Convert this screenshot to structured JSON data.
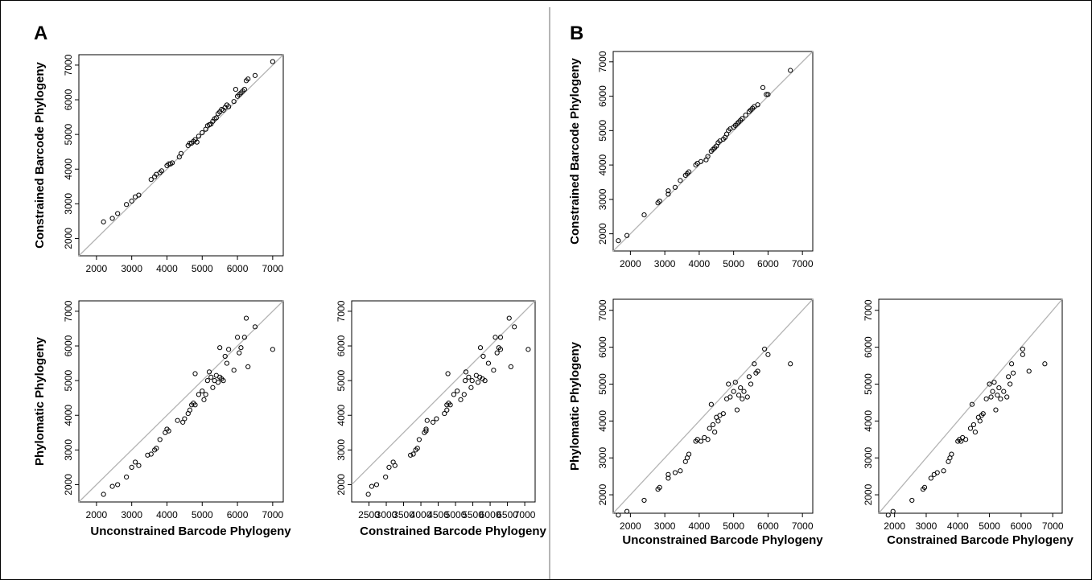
{
  "panel_labels": [
    "A",
    "B"
  ],
  "chart_data": [
    {
      "id": "A1",
      "panel": "A",
      "type": "scatter",
      "xlabel": "",
      "ylabel": "Constrained Barcode Phylogeny",
      "xlim": [
        1500,
        7300
      ],
      "ylim": [
        1500,
        7300
      ],
      "xticks": [
        2000,
        3000,
        4000,
        5000,
        6000,
        7000
      ],
      "yticks": [
        2000,
        3000,
        4000,
        5000,
        6000,
        7000
      ],
      "reference_line": "y = x",
      "grid": false,
      "points": [
        [
          2200,
          2480
        ],
        [
          2450,
          2580
        ],
        [
          2600,
          2720
        ],
        [
          2850,
          2980
        ],
        [
          3000,
          3080
        ],
        [
          3100,
          3200
        ],
        [
          3200,
          3250
        ],
        [
          3550,
          3700
        ],
        [
          3650,
          3780
        ],
        [
          3700,
          3850
        ],
        [
          3800,
          3900
        ],
        [
          3850,
          3950
        ],
        [
          4000,
          4100
        ],
        [
          4050,
          4150
        ],
        [
          4100,
          4150
        ],
        [
          4150,
          4180
        ],
        [
          4350,
          4350
        ],
        [
          4400,
          4450
        ],
        [
          4600,
          4680
        ],
        [
          4650,
          4750
        ],
        [
          4700,
          4750
        ],
        [
          4750,
          4800
        ],
        [
          4800,
          4850
        ],
        [
          4850,
          4780
        ],
        [
          4900,
          4950
        ],
        [
          5000,
          5050
        ],
        [
          5100,
          5150
        ],
        [
          5150,
          5250
        ],
        [
          5200,
          5280
        ],
        [
          5250,
          5300
        ],
        [
          5300,
          5380
        ],
        [
          5350,
          5450
        ],
        [
          5400,
          5480
        ],
        [
          5450,
          5600
        ],
        [
          5500,
          5650
        ],
        [
          5550,
          5720
        ],
        [
          5600,
          5700
        ],
        [
          5650,
          5780
        ],
        [
          5700,
          5850
        ],
        [
          5750,
          5800
        ],
        [
          5900,
          5950
        ],
        [
          5950,
          6300
        ],
        [
          6000,
          6100
        ],
        [
          6050,
          6150
        ],
        [
          6100,
          6200
        ],
        [
          6150,
          6250
        ],
        [
          6200,
          6300
        ],
        [
          6250,
          6550
        ],
        [
          6300,
          6600
        ],
        [
          6500,
          6700
        ],
        [
          7000,
          7100
        ]
      ]
    },
    {
      "id": "A2",
      "panel": "A",
      "type": "scatter",
      "xlabel": "Unconstrained Barcode Phylogeny",
      "ylabel": "Phylomatic Phylogeny",
      "xlim": [
        1500,
        7300
      ],
      "ylim": [
        1500,
        7300
      ],
      "xticks": [
        2000,
        3000,
        4000,
        5000,
        6000,
        7000
      ],
      "yticks": [
        2000,
        3000,
        4000,
        5000,
        6000,
        7000
      ],
      "reference_line": "y = x",
      "grid": false,
      "points": [
        [
          2200,
          1720
        ],
        [
          2450,
          1950
        ],
        [
          2600,
          2000
        ],
        [
          2850,
          2220
        ],
        [
          3000,
          2500
        ],
        [
          3100,
          2650
        ],
        [
          3200,
          2550
        ],
        [
          3450,
          2850
        ],
        [
          3550,
          2880
        ],
        [
          3650,
          3000
        ],
        [
          3700,
          3050
        ],
        [
          3800,
          3300
        ],
        [
          3950,
          3500
        ],
        [
          4000,
          3600
        ],
        [
          4050,
          3550
        ],
        [
          4300,
          3850
        ],
        [
          4450,
          3800
        ],
        [
          4500,
          3900
        ],
        [
          4600,
          4050
        ],
        [
          4650,
          4150
        ],
        [
          4700,
          4300
        ],
        [
          4750,
          4350
        ],
        [
          4800,
          4300
        ],
        [
          4800,
          5200
        ],
        [
          4900,
          4600
        ],
        [
          5000,
          4700
        ],
        [
          5050,
          4450
        ],
        [
          5100,
          4600
        ],
        [
          5150,
          5000
        ],
        [
          5200,
          5250
        ],
        [
          5250,
          5100
        ],
        [
          5300,
          4800
        ],
        [
          5350,
          5000
        ],
        [
          5400,
          5150
        ],
        [
          5450,
          4950
        ],
        [
          5500,
          5950
        ],
        [
          5500,
          5100
        ],
        [
          5550,
          5050
        ],
        [
          5600,
          5000
        ],
        [
          5650,
          5700
        ],
        [
          5700,
          5500
        ],
        [
          5750,
          5900
        ],
        [
          5900,
          5300
        ],
        [
          6000,
          6250
        ],
        [
          6050,
          5800
        ],
        [
          6100,
          5950
        ],
        [
          6200,
          6250
        ],
        [
          6250,
          6800
        ],
        [
          6300,
          5400
        ],
        [
          6500,
          6550
        ],
        [
          7000,
          5900
        ]
      ]
    },
    {
      "id": "A3",
      "panel": "A",
      "type": "scatter",
      "xlabel": "Constrained Barcode Phylogeny",
      "ylabel": "",
      "xlim": [
        2000,
        7300
      ],
      "ylim": [
        1500,
        7300
      ],
      "xticks": [
        2500,
        3000,
        3500,
        4000,
        4500,
        5000,
        5500,
        6000,
        6500,
        7000
      ],
      "yticks": [
        2000,
        3000,
        4000,
        5000,
        6000,
        7000
      ],
      "reference_line": "y = x",
      "grid": false,
      "points": [
        [
          2480,
          1720
        ],
        [
          2580,
          1950
        ],
        [
          2720,
          2000
        ],
        [
          2980,
          2220
        ],
        [
          3080,
          2500
        ],
        [
          3200,
          2650
        ],
        [
          3250,
          2550
        ],
        [
          3700,
          2850
        ],
        [
          3780,
          2880
        ],
        [
          3850,
          3000
        ],
        [
          3900,
          3050
        ],
        [
          3950,
          3300
        ],
        [
          4100,
          3500
        ],
        [
          4150,
          3600
        ],
        [
          4150,
          3550
        ],
        [
          4180,
          3850
        ],
        [
          4350,
          3800
        ],
        [
          4450,
          3900
        ],
        [
          4680,
          4050
        ],
        [
          4750,
          4150
        ],
        [
          4750,
          4300
        ],
        [
          4800,
          4350
        ],
        [
          4850,
          4300
        ],
        [
          4780,
          5200
        ],
        [
          4950,
          4600
        ],
        [
          5050,
          4700
        ],
        [
          5150,
          4450
        ],
        [
          5250,
          4600
        ],
        [
          5280,
          5000
        ],
        [
          5300,
          5250
        ],
        [
          5380,
          5100
        ],
        [
          5450,
          4800
        ],
        [
          5480,
          5000
        ],
        [
          5600,
          5150
        ],
        [
          5650,
          4950
        ],
        [
          5720,
          5950
        ],
        [
          5700,
          5100
        ],
        [
          5780,
          5050
        ],
        [
          5850,
          5000
        ],
        [
          5800,
          5700
        ],
        [
          5950,
          5500
        ],
        [
          6300,
          5900
        ],
        [
          6100,
          5300
        ],
        [
          6150,
          6250
        ],
        [
          6200,
          5800
        ],
        [
          6250,
          5950
        ],
        [
          6300,
          6250
        ],
        [
          6550,
          6800
        ],
        [
          6600,
          5400
        ],
        [
          6700,
          6550
        ],
        [
          7100,
          5900
        ]
      ]
    },
    {
      "id": "B1",
      "panel": "B",
      "type": "scatter",
      "xlabel": "",
      "ylabel": "Constrained Barcode Phylogeny",
      "xlim": [
        1500,
        7300
      ],
      "ylim": [
        1500,
        7300
      ],
      "xticks": [
        2000,
        3000,
        4000,
        5000,
        6000,
        7000
      ],
      "yticks": [
        2000,
        3000,
        4000,
        5000,
        6000,
        7000
      ],
      "reference_line": "y = x",
      "grid": false,
      "points": [
        [
          1650,
          1800
        ],
        [
          1900,
          1950
        ],
        [
          2400,
          2550
        ],
        [
          2800,
          2900
        ],
        [
          2850,
          2950
        ],
        [
          3100,
          3150
        ],
        [
          3100,
          3250
        ],
        [
          3300,
          3350
        ],
        [
          3450,
          3550
        ],
        [
          3600,
          3700
        ],
        [
          3650,
          3750
        ],
        [
          3700,
          3800
        ],
        [
          3900,
          4000
        ],
        [
          3950,
          4050
        ],
        [
          4050,
          4100
        ],
        [
          4200,
          4150
        ],
        [
          4250,
          4250
        ],
        [
          4350,
          4400
        ],
        [
          4400,
          4450
        ],
        [
          4450,
          4500
        ],
        [
          4500,
          4550
        ],
        [
          4550,
          4650
        ],
        [
          4600,
          4700
        ],
        [
          4700,
          4750
        ],
        [
          4750,
          4800
        ],
        [
          4800,
          4900
        ],
        [
          4850,
          5000
        ],
        [
          4900,
          5050
        ],
        [
          5000,
          5100
        ],
        [
          5050,
          5150
        ],
        [
          5100,
          5200
        ],
        [
          5150,
          5250
        ],
        [
          5200,
          5300
        ],
        [
          5250,
          5350
        ],
        [
          5350,
          5450
        ],
        [
          5450,
          5550
        ],
        [
          5500,
          5600
        ],
        [
          5550,
          5650
        ],
        [
          5600,
          5700
        ],
        [
          5700,
          5750
        ],
        [
          5850,
          6250
        ],
        [
          5950,
          6050
        ],
        [
          6000,
          6050
        ],
        [
          6650,
          6750
        ]
      ]
    },
    {
      "id": "B2",
      "panel": "B",
      "type": "scatter",
      "xlabel": "Unconstrained Barcode Phylogeny",
      "ylabel": "Phylomatic Phylogeny",
      "xlim": [
        1500,
        7300
      ],
      "ylim": [
        1500,
        7300
      ],
      "xticks": [
        2000,
        3000,
        4000,
        5000,
        6000,
        7000
      ],
      "yticks": [
        2000,
        3000,
        4000,
        5000,
        6000,
        7000
      ],
      "reference_line": "y = x",
      "grid": false,
      "points": [
        [
          1650,
          1450
        ],
        [
          1900,
          1550
        ],
        [
          2400,
          1850
        ],
        [
          2800,
          2150
        ],
        [
          2850,
          2200
        ],
        [
          3100,
          2450
        ],
        [
          3100,
          2550
        ],
        [
          3300,
          2600
        ],
        [
          3450,
          2650
        ],
        [
          3600,
          2900
        ],
        [
          3650,
          3000
        ],
        [
          3700,
          3100
        ],
        [
          3900,
          3450
        ],
        [
          3950,
          3500
        ],
        [
          4050,
          3450
        ],
        [
          4150,
          3550
        ],
        [
          4250,
          3500
        ],
        [
          4300,
          3800
        ],
        [
          4350,
          4450
        ],
        [
          4400,
          3900
        ],
        [
          4450,
          3700
        ],
        [
          4500,
          4100
        ],
        [
          4550,
          4000
        ],
        [
          4600,
          4150
        ],
        [
          4700,
          4200
        ],
        [
          4800,
          4600
        ],
        [
          4850,
          5000
        ],
        [
          4900,
          4650
        ],
        [
          5000,
          4800
        ],
        [
          5050,
          5050
        ],
        [
          5100,
          4300
        ],
        [
          5150,
          4700
        ],
        [
          5200,
          4900
        ],
        [
          5250,
          4600
        ],
        [
          5300,
          4800
        ],
        [
          5400,
          4650
        ],
        [
          5450,
          5200
        ],
        [
          5500,
          5000
        ],
        [
          5600,
          5550
        ],
        [
          5650,
          5300
        ],
        [
          5700,
          5350
        ],
        [
          5900,
          5950
        ],
        [
          6000,
          5800
        ],
        [
          6650,
          5550
        ]
      ]
    },
    {
      "id": "B3",
      "panel": "B",
      "type": "scatter",
      "xlabel": "Constrained Barcode Phylogeny",
      "ylabel": "",
      "xlim": [
        1500,
        7300
      ],
      "ylim": [
        1500,
        7300
      ],
      "xticks": [
        2000,
        3000,
        4000,
        5000,
        6000,
        7000
      ],
      "yticks": [
        2000,
        3000,
        4000,
        5000,
        6000,
        7000
      ],
      "reference_line": "y = x",
      "grid": false,
      "points": [
        [
          1800,
          1450
        ],
        [
          1950,
          1550
        ],
        [
          2550,
          1850
        ],
        [
          2900,
          2150
        ],
        [
          2950,
          2200
        ],
        [
          3150,
          2450
        ],
        [
          3250,
          2550
        ],
        [
          3350,
          2600
        ],
        [
          3550,
          2650
        ],
        [
          3700,
          2900
        ],
        [
          3750,
          3000
        ],
        [
          3800,
          3100
        ],
        [
          4000,
          3450
        ],
        [
          4050,
          3500
        ],
        [
          4100,
          3450
        ],
        [
          4150,
          3550
        ],
        [
          4250,
          3500
        ],
        [
          4400,
          3800
        ],
        [
          4450,
          4450
        ],
        [
          4500,
          3900
        ],
        [
          4550,
          3700
        ],
        [
          4650,
          4100
        ],
        [
          4700,
          4000
        ],
        [
          4750,
          4150
        ],
        [
          4800,
          4200
        ],
        [
          4900,
          4600
        ],
        [
          5000,
          5000
        ],
        [
          5050,
          4650
        ],
        [
          5100,
          4800
        ],
        [
          5150,
          5050
        ],
        [
          5200,
          4300
        ],
        [
          5250,
          4700
        ],
        [
          5300,
          4900
        ],
        [
          5350,
          4600
        ],
        [
          5450,
          4800
        ],
        [
          5550,
          4650
        ],
        [
          5600,
          5200
        ],
        [
          5650,
          5000
        ],
        [
          5700,
          5550
        ],
        [
          5750,
          5300
        ],
        [
          6250,
          5350
        ],
        [
          6050,
          5950
        ],
        [
          6050,
          5800
        ],
        [
          6750,
          5550
        ]
      ]
    }
  ]
}
